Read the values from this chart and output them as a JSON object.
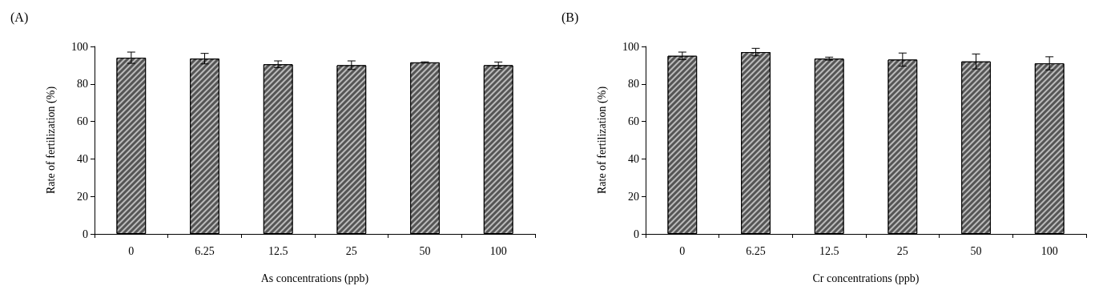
{
  "chart_data": [
    {
      "type": "bar",
      "title": "(A)",
      "xlabel": "As concentrations (ppb)",
      "ylabel": "Rate of fertilization (%)",
      "categories": [
        "0",
        "6.25",
        "12.5",
        "25",
        "50",
        "100"
      ],
      "color": "#555555",
      "values": [
        94,
        93.5,
        90.5,
        90,
        91.5,
        90
      ],
      "errors": [
        3,
        2.8,
        1.8,
        2.3,
        0.3,
        1.7
      ],
      "ylim": [
        0,
        100
      ],
      "yticks": [
        0,
        20,
        40,
        60,
        80,
        100
      ]
    },
    {
      "type": "bar",
      "title": "(B)",
      "xlabel": "Cr concentrations (ppb)",
      "ylabel": "Rate of fertilization (%)",
      "categories": [
        "0",
        "6.25",
        "12.5",
        "25",
        "50",
        "100"
      ],
      "color": "#555555",
      "values": [
        95,
        97,
        93.5,
        93,
        92,
        91
      ],
      "errors": [
        2,
        2,
        0.8,
        3.5,
        4,
        3.5
      ],
      "ylim": [
        0,
        100
      ],
      "yticks": [
        0,
        20,
        40,
        60,
        80,
        100
      ]
    }
  ]
}
